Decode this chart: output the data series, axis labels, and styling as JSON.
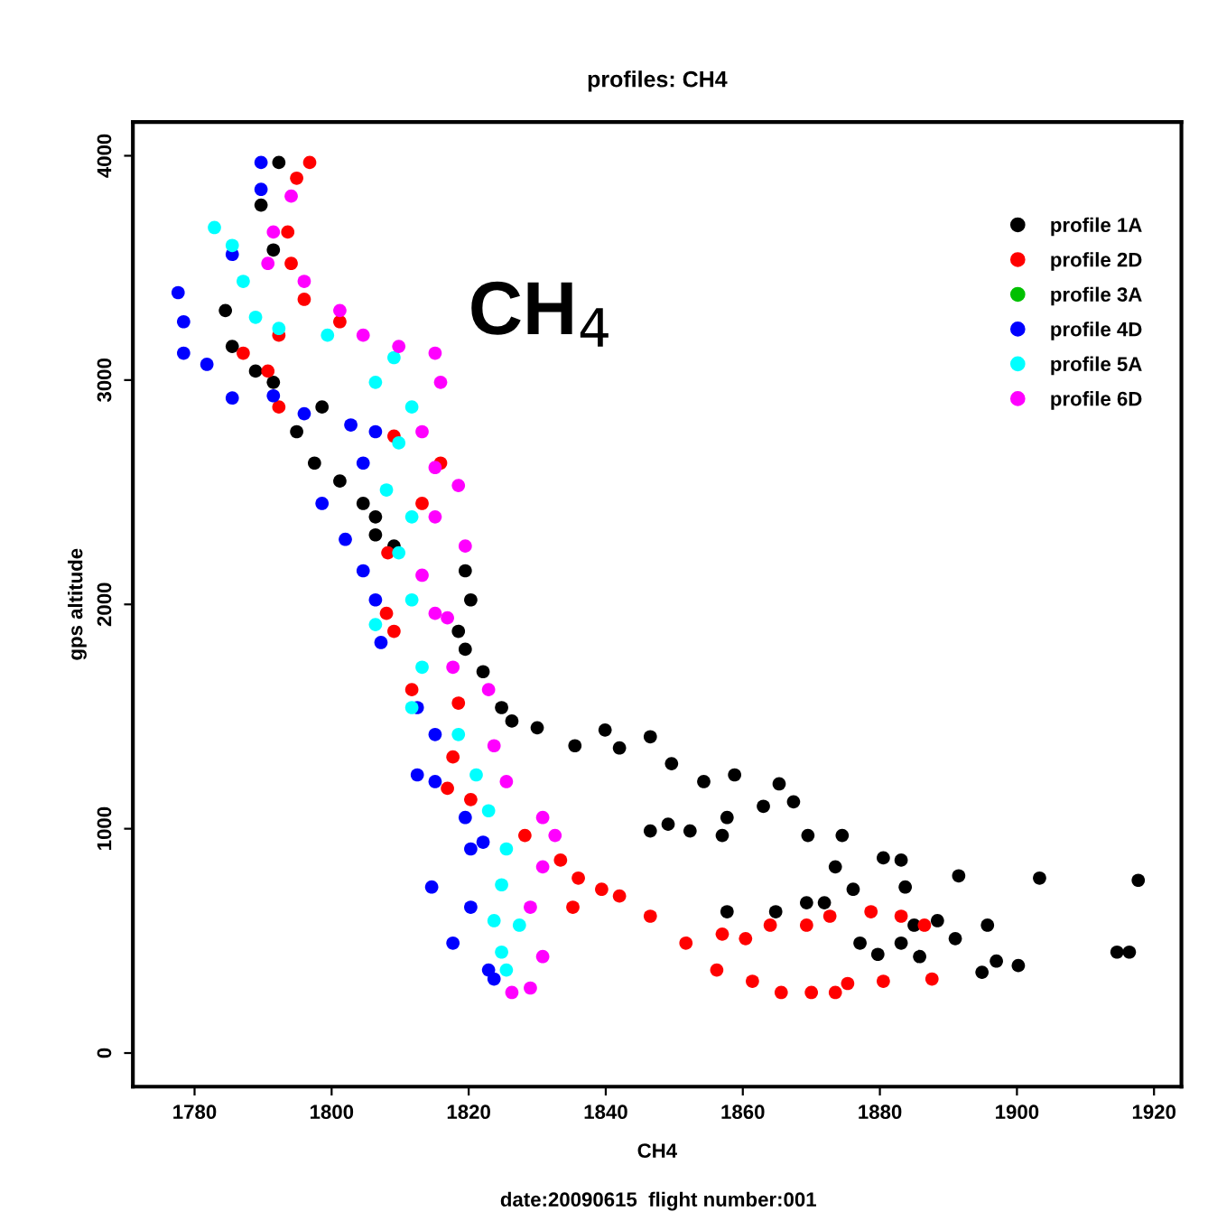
{
  "chart_data": {
    "type": "scatter",
    "title": "profiles: CH4",
    "xlabel": "CH4",
    "ylabel": "gps altitude",
    "annotations": [
      "CH$_{4}$",
      "date:20090615  flight number:001"
    ],
    "xlim": [
      1771,
      1924
    ],
    "ylim": [
      -150,
      4150
    ],
    "xticks": [
      1780,
      1800,
      1820,
      1840,
      1860,
      1880,
      1900,
      1920
    ],
    "yticks": [
      0,
      1000,
      2000,
      3000,
      4000
    ],
    "marker": "circle",
    "grid": false,
    "legend": "top right",
    "series": [
      {
        "name": "profile 1A",
        "color": "#000000",
        "x": [
          1792.3,
          1789.7,
          1791.5,
          1784.5,
          1785.5,
          1788.9,
          1791.5,
          1794.9,
          1798.6,
          1797.5,
          1801.2,
          1804.6,
          1806.4,
          1806.4,
          1809.1,
          1819.5,
          1820.3,
          1818.5,
          1819.5,
          1822.1,
          1824.8,
          1826.3,
          1830,
          1835.5,
          1839.9,
          1842,
          1846.5,
          1849.6,
          1846.5,
          1849.1,
          1852.3,
          1854.3,
          1858.8,
          1857.7,
          1857,
          1863,
          1865.3,
          1867.4,
          1869.5,
          1873.5,
          1874.5,
          1857.7,
          1864.8,
          1869.3,
          1871.9,
          1876.1,
          1877.1,
          1879.7,
          1880.5,
          1883.1,
          1883.7,
          1885,
          1883.1,
          1885.8,
          1888.4,
          1891,
          1891.5,
          1895.7,
          1894.9,
          1897,
          1900.2,
          1903.3,
          1914.6,
          1916.4,
          1917.7
        ],
        "values": [
          3970,
          3780,
          3580,
          3310,
          3150,
          3040,
          2990,
          2770,
          2880,
          2630,
          2550,
          2450,
          2390,
          2310,
          2260,
          2150,
          2020,
          1880,
          1800,
          1700,
          1540,
          1480,
          1450,
          1370,
          1440,
          1360,
          1410,
          1290,
          990,
          1020,
          990,
          1210,
          1240,
          1050,
          970,
          1100,
          1200,
          1120,
          970,
          830,
          970,
          630,
          630,
          670,
          670,
          730,
          490,
          440,
          870,
          860,
          740,
          570,
          490,
          430,
          590,
          510,
          790,
          570,
          360,
          410,
          390,
          780,
          450,
          450,
          770
        ]
      },
      {
        "name": "profile 2D",
        "color": "#ff0000",
        "x": [
          1796.8,
          1794.9,
          1793.6,
          1794.1,
          1796,
          1792.3,
          1787.1,
          1790.7,
          1792.3,
          1801.2,
          1809.1,
          1815.9,
          1813.2,
          1808.2,
          1808,
          1809.1,
          1811.7,
          1818.5,
          1817.7,
          1816.9,
          1820.3,
          1828.2,
          1833.4,
          1836,
          1839.4,
          1835.2,
          1842,
          1846.5,
          1851.7,
          1856.2,
          1857,
          1860.4,
          1864,
          1861.4,
          1865.6,
          1870,
          1873.5,
          1875.3,
          1869.3,
          1872.7,
          1878.7,
          1880.5,
          1883.1,
          1886.5,
          1887.6
        ],
        "values": [
          3970,
          3900,
          3660,
          3520,
          3360,
          3200,
          3120,
          3040,
          2880,
          3260,
          2750,
          2630,
          2450,
          2230,
          1960,
          1880,
          1620,
          1560,
          1320,
          1180,
          1130,
          970,
          860,
          780,
          730,
          650,
          700,
          610,
          490,
          370,
          530,
          510,
          570,
          320,
          270,
          270,
          270,
          310,
          570,
          610,
          630,
          320,
          610,
          570,
          330
        ]
      },
      {
        "name": "profile 3A",
        "color": "#00c000"
      },
      {
        "name": "profile 4D",
        "color": "#0000ff",
        "x": [
          1789.7,
          1789.7,
          1785.5,
          1777.6,
          1778.4,
          1778.4,
          1781.8,
          1785.5,
          1791.5,
          1796,
          1802.8,
          1806.4,
          1804.6,
          1798.6,
          1802,
          1804.6,
          1806.4,
          1807.2,
          1812.5,
          1815.1,
          1812.5,
          1815.1,
          1819.5,
          1822.1,
          1820.3,
          1814.6,
          1820.3,
          1817.7,
          1822.9,
          1823.7
        ],
        "values": [
          3970,
          3850,
          3560,
          3390,
          3260,
          3120,
          3070,
          2920,
          2930,
          2850,
          2800,
          2770,
          2630,
          2450,
          2290,
          2150,
          2020,
          1830,
          1540,
          1420,
          1240,
          1210,
          1050,
          940,
          910,
          740,
          650,
          490,
          370,
          330
        ]
      },
      {
        "name": "profile 5A",
        "color": "#00ffff",
        "x": [
          1782.9,
          1785.5,
          1787.1,
          1788.9,
          1792.3,
          1799.4,
          1809.1,
          1806.4,
          1811.7,
          1809.8,
          1808,
          1811.7,
          1809.8,
          1811.7,
          1806.4,
          1813.2,
          1811.7,
          1818.5,
          1821.1,
          1822.9,
          1825.5,
          1824.8,
          1823.7,
          1824.8,
          1825.5,
          1827.4
        ],
        "values": [
          3680,
          3600,
          3440,
          3280,
          3230,
          3200,
          3100,
          2990,
          2880,
          2720,
          2510,
          2390,
          2230,
          2020,
          1910,
          1720,
          1540,
          1420,
          1240,
          1080,
          910,
          750,
          590,
          450,
          370,
          570
        ]
      },
      {
        "name": "profile 6D",
        "color": "#ff00ff",
        "x": [
          1794.1,
          1791.5,
          1790.7,
          1796,
          1801.2,
          1804.6,
          1809.8,
          1815.1,
          1815.9,
          1813.2,
          1815.1,
          1818.5,
          1815.1,
          1819.5,
          1813.2,
          1815.1,
          1816.9,
          1817.7,
          1822.9,
          1823.7,
          1825.5,
          1830.8,
          1832.6,
          1830.8,
          1829,
          1830.8,
          1829,
          1826.3
        ],
        "values": [
          3820,
          3660,
          3520,
          3440,
          3310,
          3200,
          3150,
          3120,
          2990,
          2770,
          2610,
          2530,
          2390,
          2260,
          2130,
          1960,
          1940,
          1720,
          1620,
          1370,
          1210,
          1050,
          970,
          830,
          650,
          430,
          290,
          270
        ]
      }
    ]
  }
}
